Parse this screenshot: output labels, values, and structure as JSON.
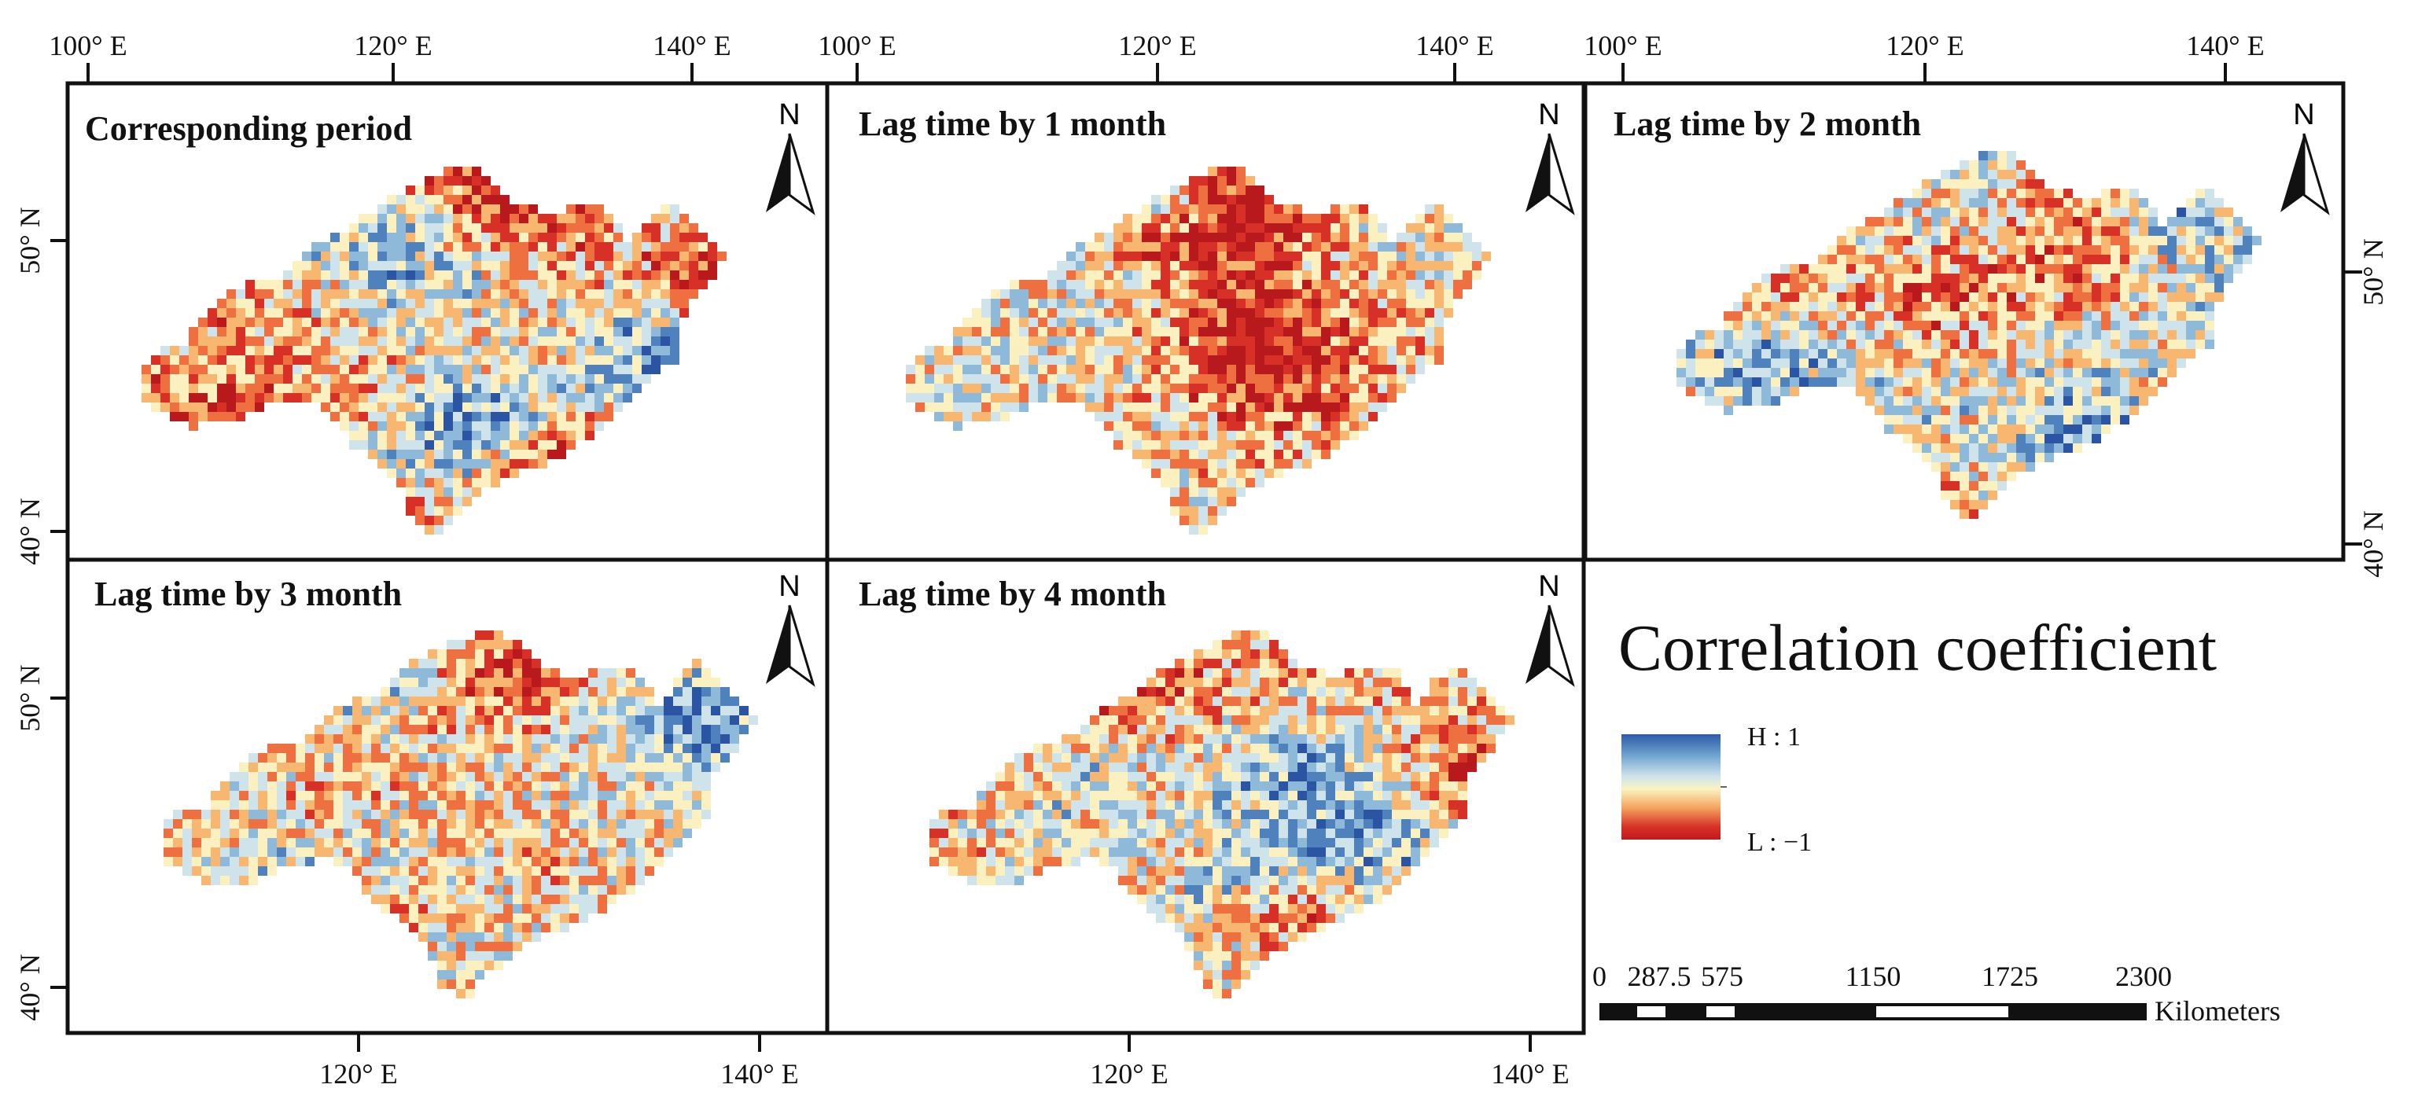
{
  "figure": {
    "panels": [
      {
        "id": "p0",
        "title": "Corresponding period"
      },
      {
        "id": "p1",
        "title": "Lag time by 1 month"
      },
      {
        "id": "p2",
        "title": "Lag time by 2 month"
      },
      {
        "id": "p3",
        "title": "Lag time by 3 month"
      },
      {
        "id": "p4",
        "title": "Lag time by 4 month"
      }
    ],
    "lon_ticks": [
      "100° E",
      "120° E",
      "140° E"
    ],
    "lat_ticks": [
      "50° N",
      "40° N"
    ],
    "north_label": "N"
  },
  "legend": {
    "title": "Correlation coefficient",
    "high_label": "H : 1",
    "low_label": "L : −1",
    "colors": [
      "#2d5aa8",
      "#6fa3cf",
      "#cfe3ea",
      "#fbf3bf",
      "#f6a25e",
      "#d73027",
      "#c41a1e"
    ]
  },
  "scale_bar": {
    "labels": [
      "0",
      "287.5",
      "575",
      "1150",
      "1725",
      "2300"
    ],
    "unit": "Kilometers"
  }
}
